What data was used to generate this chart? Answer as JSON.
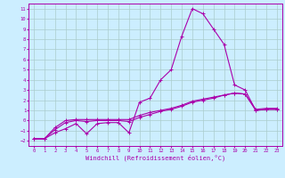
{
  "background_color": "#cceeff",
  "grid_color": "#aacccc",
  "line_color": "#aa00aa",
  "xlabel": "Windchill (Refroidissement éolien,°C)",
  "xlim": [
    -0.5,
    23.5
  ],
  "ylim": [
    -2.5,
    11.5
  ],
  "xticks": [
    0,
    1,
    2,
    3,
    4,
    5,
    6,
    7,
    8,
    9,
    10,
    11,
    12,
    13,
    14,
    15,
    16,
    17,
    18,
    19,
    20,
    21,
    22,
    23
  ],
  "yticks": [
    -2,
    -1,
    0,
    1,
    2,
    3,
    4,
    5,
    6,
    7,
    8,
    9,
    10,
    11
  ],
  "series": [
    {
      "x": [
        0,
        1,
        2,
        3,
        4,
        5,
        6,
        7,
        8,
        9,
        10,
        11,
        12,
        13,
        14,
        15,
        16,
        17,
        18,
        19,
        20,
        21,
        22,
        23
      ],
      "y": [
        -1.8,
        -1.8,
        -1.2,
        -0.8,
        -0.3,
        -1.3,
        -0.3,
        -0.2,
        -0.2,
        -1.2,
        1.8,
        2.2,
        4.0,
        5.0,
        8.3,
        11.0,
        10.5,
        9.0,
        7.5,
        3.5,
        3.0,
        1.0,
        1.1,
        1.1
      ]
    },
    {
      "x": [
        0,
        1,
        2,
        3,
        4,
        5,
        6,
        7,
        8,
        9,
        10,
        11,
        12,
        13,
        14,
        15,
        16,
        17,
        18,
        19,
        20,
        21,
        22,
        23
      ],
      "y": [
        -1.8,
        -1.8,
        -0.9,
        -0.2,
        0.0,
        -0.1,
        0.0,
        0.0,
        0.0,
        -0.1,
        0.3,
        0.6,
        0.9,
        1.1,
        1.4,
        1.8,
        2.0,
        2.2,
        2.5,
        2.7,
        2.6,
        1.0,
        1.1,
        1.1
      ]
    },
    {
      "x": [
        0,
        1,
        2,
        3,
        4,
        5,
        6,
        7,
        8,
        9,
        10,
        11,
        12,
        13,
        14,
        15,
        16,
        17,
        18,
        19,
        20,
        21,
        22,
        23
      ],
      "y": [
        -1.8,
        -1.8,
        -0.7,
        0.0,
        0.1,
        0.1,
        0.1,
        0.1,
        0.1,
        0.1,
        0.5,
        0.8,
        1.0,
        1.2,
        1.5,
        1.9,
        2.1,
        2.3,
        2.5,
        2.7,
        2.6,
        1.1,
        1.2,
        1.2
      ]
    }
  ]
}
